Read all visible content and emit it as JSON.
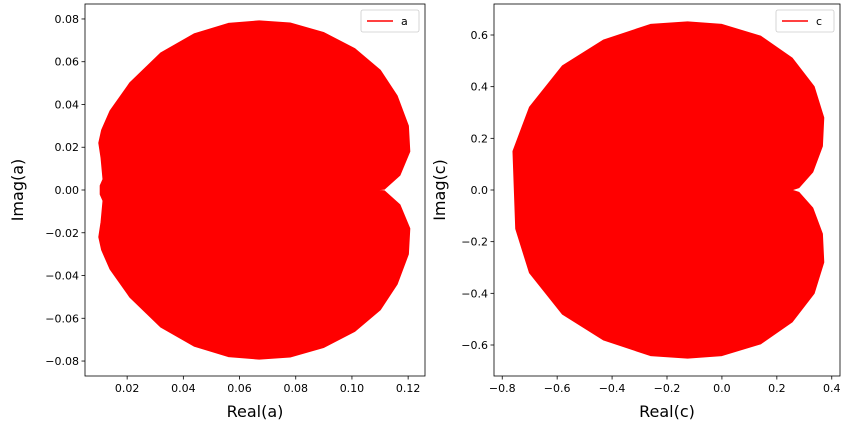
{
  "chart_data": [
    {
      "type": "area",
      "xlabel": "Real(a)",
      "ylabel": "Imag(a)",
      "xlim": [
        0.005,
        0.126
      ],
      "ylim": [
        -0.087,
        0.087
      ],
      "xticks": [
        "0.02",
        "0.04",
        "0.06",
        "0.08",
        "0.10",
        "0.12"
      ],
      "yticks": [
        "−0.08",
        "−0.06",
        "−0.04",
        "−0.02",
        "0.00",
        "0.02",
        "0.04",
        "0.06",
        "0.08"
      ],
      "legend": {
        "position": "top-right",
        "entries": [
          {
            "name": "a",
            "color": "#ff0000"
          }
        ]
      },
      "series": [
        {
          "name": "a",
          "color": "#ff0000",
          "filled": true,
          "x": [
            0.1075,
            0.1115,
            0.117,
            0.1205,
            0.12,
            0.116,
            0.11,
            0.101,
            0.09,
            0.078,
            0.067,
            0.056,
            0.044,
            0.032,
            0.021,
            0.014,
            0.011,
            0.01,
            0.0108,
            0.0115,
            0.0105,
            0.0105,
            0.0115,
            0.0108,
            0.01,
            0.011,
            0.014,
            0.021,
            0.032,
            0.044,
            0.056,
            0.067,
            0.078,
            0.09,
            0.101,
            0.11,
            0.116,
            0.12,
            0.1205,
            0.117,
            0.1115,
            0.1075
          ],
          "y": [
            0.0,
            0.0005,
            0.007,
            0.018,
            0.03,
            0.044,
            0.056,
            0.066,
            0.0735,
            0.078,
            0.079,
            0.0778,
            0.073,
            0.064,
            0.05,
            0.037,
            0.028,
            0.022,
            0.015,
            0.005,
            0.002,
            -0.002,
            -0.005,
            -0.015,
            -0.022,
            -0.028,
            -0.037,
            -0.05,
            -0.064,
            -0.073,
            -0.0778,
            -0.079,
            -0.078,
            -0.0735,
            -0.066,
            -0.056,
            -0.044,
            -0.03,
            -0.018,
            -0.007,
            -0.0005,
            0.0
          ]
        }
      ]
    },
    {
      "type": "area",
      "xlabel": "Real(c)",
      "ylabel": "Imag(c)",
      "xlim": [
        -0.83,
        0.43
      ],
      "ylim": [
        -0.72,
        0.72
      ],
      "xticks": [
        "−0.8",
        "−0.6",
        "−0.4",
        "−0.2",
        "0.0",
        "0.2",
        "0.4"
      ],
      "yticks": [
        "−0.6",
        "−0.4",
        "−0.2",
        "0.0",
        "0.2",
        "0.4",
        "0.6"
      ],
      "legend": {
        "position": "top-right",
        "entries": [
          {
            "name": "c",
            "color": "#ff0000"
          }
        ]
      },
      "series": [
        {
          "name": "c",
          "color": "#ff0000",
          "filled": true,
          "x": [
            0.25,
            0.28,
            0.33,
            0.365,
            0.37,
            0.335,
            0.255,
            0.14,
            0.0,
            -0.125,
            -0.26,
            -0.43,
            -0.58,
            -0.7,
            -0.76,
            -0.75,
            -0.7,
            -0.58,
            -0.43,
            -0.26,
            -0.125,
            0.0,
            0.14,
            0.255,
            0.335,
            0.37,
            0.365,
            0.33,
            0.28,
            0.25
          ],
          "y": [
            0.0,
            0.01,
            0.07,
            0.17,
            0.28,
            0.4,
            0.51,
            0.595,
            0.64,
            0.65,
            0.64,
            0.58,
            0.48,
            0.32,
            0.15,
            -0.15,
            -0.32,
            -0.48,
            -0.58,
            -0.64,
            -0.65,
            -0.64,
            -0.595,
            -0.51,
            -0.4,
            -0.28,
            -0.17,
            -0.07,
            -0.01,
            0.0
          ]
        }
      ]
    }
  ]
}
